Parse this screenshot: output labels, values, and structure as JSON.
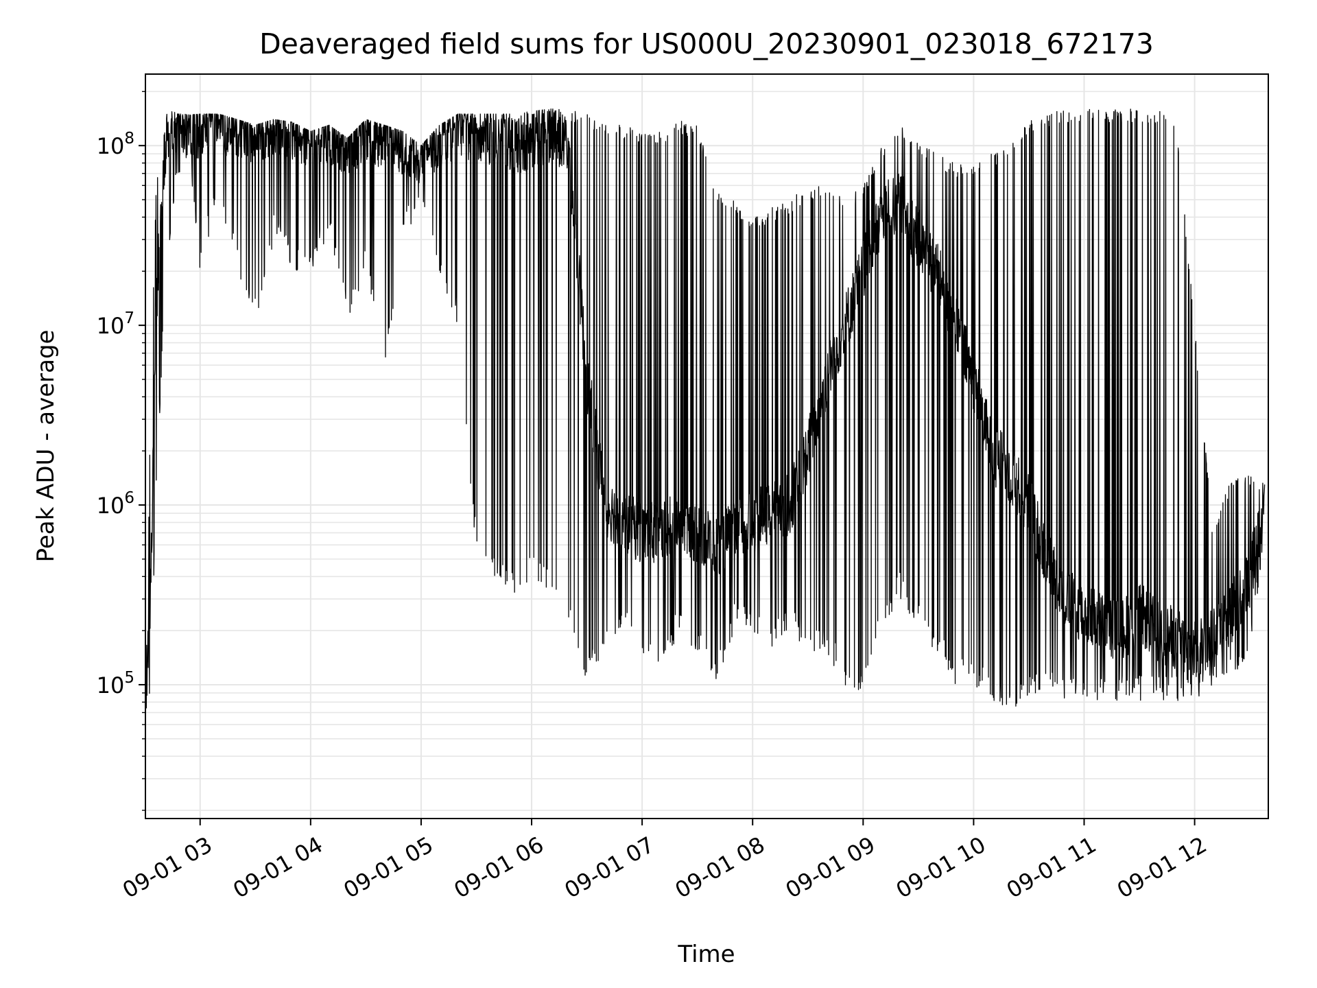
{
  "chart_data": {
    "type": "line",
    "title": "Deaveraged field sums for US000U_20230901_023018_672173",
    "xlabel": "Time",
    "ylabel": "Peak ADU - average",
    "yscale": "log",
    "xlim": [
      "2023-09-01T02:30:18",
      "2023-09-01T12:40:00"
    ],
    "ylim": [
      18000,
      250000000
    ],
    "grid": true,
    "line_color": "#000000",
    "grid_color": "#e6e6e6",
    "x_ticks": [
      {
        "value": "2023-09-01T03:00:00",
        "label": "09-01 03"
      },
      {
        "value": "2023-09-01T04:00:00",
        "label": "09-01 04"
      },
      {
        "value": "2023-09-01T05:00:00",
        "label": "09-01 05"
      },
      {
        "value": "2023-09-01T06:00:00",
        "label": "09-01 06"
      },
      {
        "value": "2023-09-01T07:00:00",
        "label": "09-01 07"
      },
      {
        "value": "2023-09-01T08:00:00",
        "label": "09-01 08"
      },
      {
        "value": "2023-09-01T09:00:00",
        "label": "09-01 09"
      },
      {
        "value": "2023-09-01T10:00:00",
        "label": "09-01 10"
      },
      {
        "value": "2023-09-01T11:00:00",
        "label": "09-01 11"
      },
      {
        "value": "2023-09-01T12:00:00",
        "label": "09-01 12"
      }
    ],
    "y_ticks": [
      {
        "value": 100000,
        "mantissa": "10",
        "exponent": "5"
      },
      {
        "value": 1000000,
        "mantissa": "10",
        "exponent": "6"
      },
      {
        "value": 10000000,
        "mantissa": "10",
        "exponent": "7"
      },
      {
        "value": 100000000,
        "mantissa": "10",
        "exponent": "8"
      }
    ],
    "series": [
      {
        "x": [
          "2023-09-01T02:30:18",
          "2023-09-01T02:33:00",
          "2023-09-01T02:36:00",
          "2023-09-01T02:39:00",
          "2023-09-01T02:42:00",
          "2023-09-01T02:45:00",
          "2023-09-01T02:48:00",
          "2023-09-01T02:51:00",
          "2023-09-01T02:54:00",
          "2023-09-01T03:00:00",
          "2023-09-01T03:10:00",
          "2023-09-01T03:20:00",
          "2023-09-01T03:30:00",
          "2023-09-01T03:40:00",
          "2023-09-01T03:50:00",
          "2023-09-01T04:00:00",
          "2023-09-01T04:10:00",
          "2023-09-01T04:20:00",
          "2023-09-01T04:30:00",
          "2023-09-01T04:40:00",
          "2023-09-01T04:50:00",
          "2023-09-01T05:00:00",
          "2023-09-01T05:10:00",
          "2023-09-01T05:20:00",
          "2023-09-01T05:30:00",
          "2023-09-01T05:40:00",
          "2023-09-01T05:50:00",
          "2023-09-01T06:00:00",
          "2023-09-01T06:10:00",
          "2023-09-01T06:20:00",
          "2023-09-01T06:30:00",
          "2023-09-01T06:40:00",
          "2023-09-01T06:50:00",
          "2023-09-01T07:00:00",
          "2023-09-01T07:10:00",
          "2023-09-01T07:20:00",
          "2023-09-01T07:30:00",
          "2023-09-01T07:40:00",
          "2023-09-01T07:50:00",
          "2023-09-01T08:00:00",
          "2023-09-01T08:10:00",
          "2023-09-01T08:20:00",
          "2023-09-01T08:30:00",
          "2023-09-01T08:40:00",
          "2023-09-01T08:50:00",
          "2023-09-01T09:00:00",
          "2023-09-01T09:10:00",
          "2023-09-01T09:20:00",
          "2023-09-01T09:30:00",
          "2023-09-01T09:40:00",
          "2023-09-01T09:50:00",
          "2023-09-01T10:00:00",
          "2023-09-01T10:10:00",
          "2023-09-01T10:20:00",
          "2023-09-01T10:30:00",
          "2023-09-01T10:40:00",
          "2023-09-01T10:50:00",
          "2023-09-01T11:00:00",
          "2023-09-01T11:10:00",
          "2023-09-01T11:20:00",
          "2023-09-01T11:30:00",
          "2023-09-01T11:40:00",
          "2023-09-01T11:50:00",
          "2023-09-01T12:00:00",
          "2023-09-01T12:10:00",
          "2023-09-01T12:20:00",
          "2023-09-01T12:30:00",
          "2023-09-01T12:38:00"
        ],
        "upper": [
          90000,
          3000000,
          60000000,
          120000000,
          150000000,
          155000000,
          150000000,
          150000000,
          148000000,
          150000000,
          150000000,
          140000000,
          130000000,
          140000000,
          135000000,
          120000000,
          130000000,
          110000000,
          140000000,
          130000000,
          120000000,
          100000000,
          130000000,
          150000000,
          150000000,
          150000000,
          150000000,
          155000000,
          160000000,
          160000000,
          150000000,
          130000000,
          130000000,
          120000000,
          120000000,
          140000000,
          130000000,
          60000000,
          50000000,
          40000000,
          45000000,
          50000000,
          60000000,
          60000000,
          50000000,
          60000000,
          100000000,
          130000000,
          110000000,
          90000000,
          80000000,
          80000000,
          90000000,
          100000000,
          140000000,
          150000000,
          160000000,
          160000000,
          160000000,
          160000000,
          160000000,
          160000000,
          150000000,
          10000000,
          700000,
          1500000,
          1500000,
          1300000
        ],
        "lower": [
          60000,
          70000,
          1000000,
          5000000,
          20000000,
          40000000,
          60000000,
          80000000,
          90000000,
          20000000,
          50000000,
          20000000,
          10000000,
          30000000,
          20000000,
          20000000,
          30000000,
          10000000,
          20000000,
          5000000,
          30000000,
          40000000,
          20000000,
          10000000,
          500000,
          400000,
          300000,
          400000,
          300000,
          200000,
          100000,
          150000,
          200000,
          150000,
          100000,
          200000,
          150000,
          100000,
          200000,
          200000,
          150000,
          200000,
          150000,
          150000,
          100000,
          80000,
          200000,
          300000,
          200000,
          150000,
          100000,
          100000,
          80000,
          70000,
          80000,
          100000,
          80000,
          80000,
          80000,
          80000,
          80000,
          80000,
          80000,
          80000,
          100000,
          100000,
          150000,
          600000
        ],
        "trend": [
          80000,
          300000,
          10000000,
          60000000,
          120000000,
          140000000,
          130000000,
          120000000,
          110000000,
          130000000,
          140000000,
          120000000,
          120000000,
          130000000,
          120000000,
          110000000,
          120000000,
          100000000,
          120000000,
          110000000,
          100000000,
          90000000,
          110000000,
          130000000,
          120000000,
          110000000,
          100000000,
          110000000,
          120000000,
          100000000,
          5000000,
          1000000,
          800000,
          700000,
          700000,
          800000,
          700000,
          600000,
          700000,
          800000,
          900000,
          1000000,
          2000000,
          5000000,
          10000000,
          20000000,
          40000000,
          50000000,
          30000000,
          20000000,
          10000000,
          5000000,
          2000000,
          1500000,
          1000000,
          500000,
          300000,
          250000,
          220000,
          200000,
          250000,
          200000,
          180000,
          150000,
          200000,
          250000,
          400000,
          1100000
        ]
      }
    ]
  }
}
